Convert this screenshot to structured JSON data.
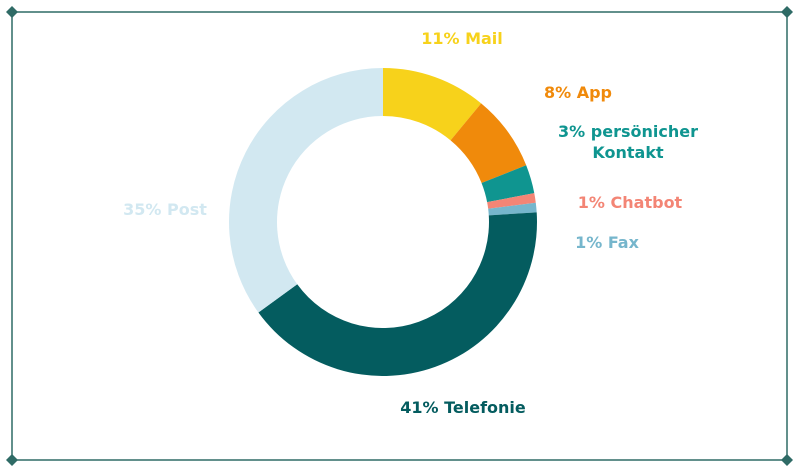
{
  "frame": {
    "color": "#2f6b66"
  },
  "chart_data": {
    "type": "pie",
    "donut": true,
    "title": "",
    "slices": [
      {
        "name": "Mail",
        "value": 11,
        "label": "11% Mail",
        "color": "#f7d21b"
      },
      {
        "name": "App",
        "value": 8,
        "label": "8% App",
        "color": "#f08a0b"
      },
      {
        "name": "persönicher Kontakt",
        "value": 3,
        "label_lines": [
          "3% persönicher",
          "Kontakt"
        ],
        "color": "#0f9590"
      },
      {
        "name": "Chatbot",
        "value": 1,
        "label": "1% Chatbot",
        "color": "#f38575"
      },
      {
        "name": "Fax",
        "value": 1,
        "label": "1% Fax",
        "color": "#76b6cc"
      },
      {
        "name": "Telefonie",
        "value": 41,
        "label": "41% Telefonie",
        "color": "#045c5f"
      },
      {
        "name": "Post",
        "value": 35,
        "label": "35% Post",
        "color": "#d2e8f1"
      }
    ]
  }
}
